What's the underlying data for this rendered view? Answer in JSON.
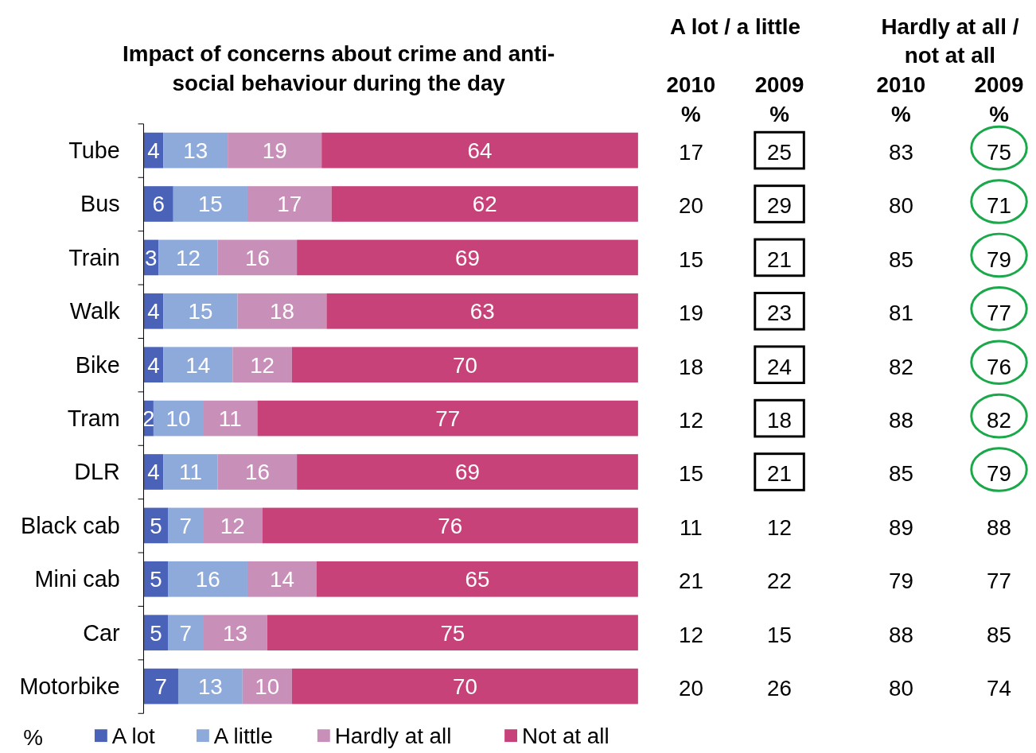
{
  "chart_data": [
    {
      "type": "bar",
      "orientation": "horizontal",
      "stacked": true,
      "title": "Impact of concerns about crime and anti-social behaviour during the day",
      "xlabel": "%",
      "categories": [
        "Tube",
        "Bus",
        "Train",
        "Walk",
        "Bike",
        "Tram",
        "DLR",
        "Black cab",
        "Mini cab",
        "Car",
        "Motorbike"
      ],
      "xlim": [
        0,
        100
      ],
      "tick_labels": "y",
      "data_labels": true,
      "legend": "bottom",
      "series": [
        {
          "name": "A lot",
          "color": "#4a62b8",
          "values": [
            4,
            6,
            3,
            4,
            4,
            2,
            4,
            5,
            5,
            5,
            7
          ]
        },
        {
          "name": "A little",
          "color": "#8eaadb",
          "values": [
            13,
            15,
            12,
            15,
            14,
            10,
            11,
            7,
            16,
            7,
            13
          ]
        },
        {
          "name": "Hardly at all",
          "color": "#c88fb8",
          "values": [
            19,
            17,
            16,
            18,
            12,
            11,
            16,
            12,
            14,
            13,
            10
          ]
        },
        {
          "name": "Not at all",
          "color": "#c8427a",
          "values": [
            64,
            62,
            69,
            63,
            70,
            77,
            69,
            76,
            65,
            75,
            70
          ]
        }
      ]
    },
    {
      "type": "heatmap",
      "categories": [
        "2010 %",
        "2009 %",
        "2010 %",
        "2009 %"
      ],
      "y_categories": [
        null,
        null,
        null,
        null,
        null,
        null,
        null,
        null,
        null,
        null,
        null
      ],
      "annotations": [
        "A lot / a little",
        "Hardly at all / not at all"
      ],
      "data_labels": true,
      "cells": [
        [
          17,
          25,
          83,
          75
        ],
        [
          20,
          29,
          80,
          71
        ],
        [
          15,
          21,
          85,
          79
        ],
        [
          19,
          23,
          81,
          77
        ],
        [
          18,
          24,
          82,
          76
        ],
        [
          12,
          18,
          88,
          82
        ],
        [
          15,
          21,
          85,
          79
        ],
        [
          11,
          12,
          89,
          88
        ],
        [
          21,
          22,
          79,
          77
        ],
        [
          12,
          15,
          88,
          85
        ],
        [
          20,
          26,
          80,
          74
        ]
      ]
    }
  ]
}
